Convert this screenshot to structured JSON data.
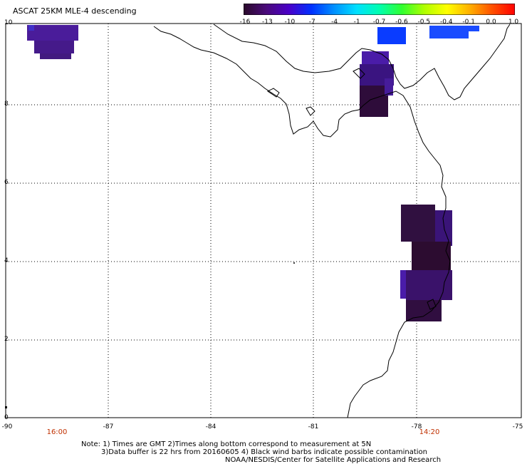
{
  "title": "ASCAT 25KM MLE-4 descending",
  "colorbar": {
    "labels": [
      "-16",
      "-13",
      "-10",
      "-7",
      "-4",
      "-1",
      "-0.7",
      "-0.6",
      "-0.5",
      "-0.4",
      "-0.1",
      "0.0",
      "1.0"
    ],
    "colors": [
      "#2a0a2a",
      "#4a0a7a",
      "#4a00c8",
      "#0030ff",
      "#0090ff",
      "#00e0ff",
      "#00ffb0",
      "#30ff30",
      "#b0ff00",
      "#ffff00",
      "#ffb000",
      "#ff5000",
      "#ff0000"
    ]
  },
  "map": {
    "lat_labels": [
      "10",
      "8",
      "6",
      "4",
      "2",
      "0"
    ],
    "lon_labels": [
      "-90",
      "-87",
      "-84",
      "-81",
      "-78",
      "-75"
    ],
    "time_labels": {
      "left": "16:00",
      "right": "14:20"
    },
    "coastline_color": "#000000",
    "grid_style": "dotted"
  },
  "notes": {
    "line1": "Note: 1) Times are GMT 2)Times along bottom correspond to measurement at 5N",
    "line2": "3)Data buffer is 22 hrs from 20160605 4) Black wind barbs indicate possible contamination",
    "credit": "NOAA/NESDIS/Center for Satellite Applications and Research"
  }
}
